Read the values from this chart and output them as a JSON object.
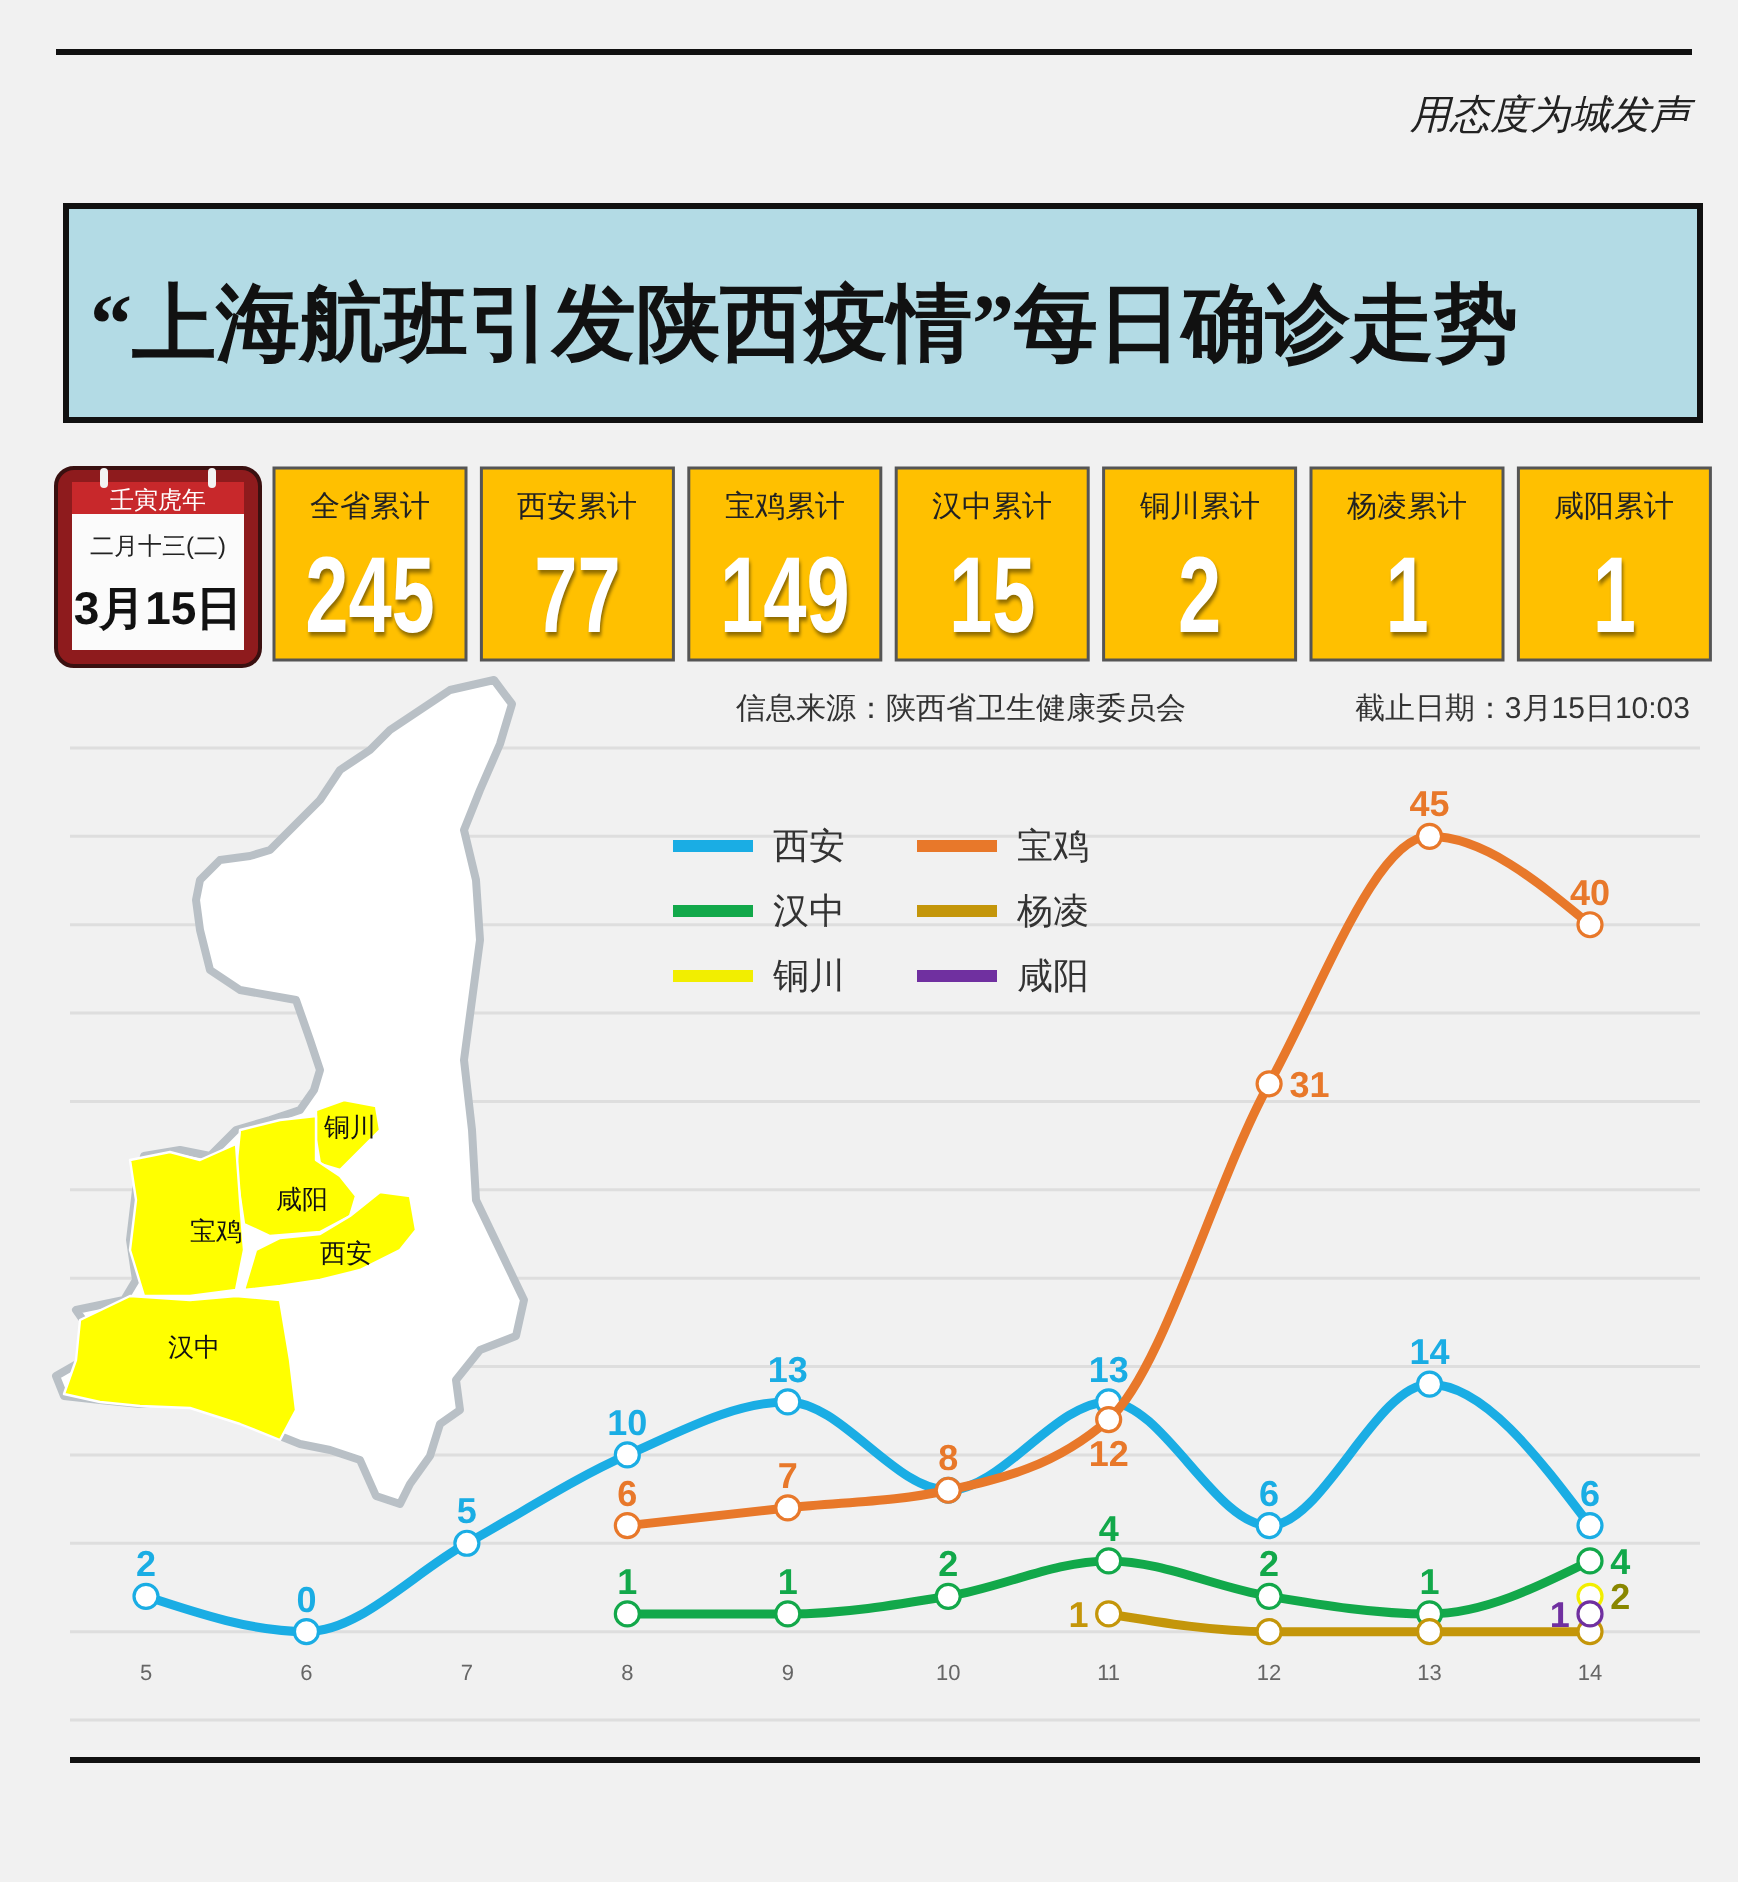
{
  "chart_data": [
    {
      "type": "line",
      "title": "“上海航班引发陕西疫情”每日确诊走势",
      "annotations": [
        "用态度为城发声",
        "信息来源：陕西省卫生健康委员会",
        "截止日期：3月15日10:03"
      ],
      "categories": [
        "5",
        "6",
        "7",
        "8",
        "9",
        "10",
        "11",
        "12",
        "13",
        "14"
      ],
      "series": [
        {
          "name": "西安",
          "color": "#1aade4",
          "values": [
            2,
            0,
            5,
            10,
            13,
            8,
            13,
            6,
            14,
            6
          ],
          "value_labels": [
            "2",
            "0",
            "5",
            "10",
            "13",
            null,
            "13",
            "6",
            "14",
            "6"
          ]
        },
        {
          "name": "宝鸡",
          "color": "#e8782a",
          "values": [
            null,
            null,
            null,
            6,
            7,
            8,
            12,
            31,
            45,
            40
          ],
          "value_labels": [
            null,
            null,
            null,
            "6",
            "7",
            "8",
            "12",
            "31",
            "45",
            "40"
          ]
        },
        {
          "name": "汉中",
          "color": "#12a84a",
          "values": [
            null,
            null,
            null,
            1,
            1,
            2,
            4,
            2,
            1,
            4
          ],
          "value_labels": [
            null,
            null,
            null,
            "1",
            "1",
            "2",
            "4",
            "2",
            "1",
            "4"
          ]
        },
        {
          "name": "杨凌",
          "color": "#c4960a",
          "values": [
            null,
            null,
            null,
            null,
            null,
            null,
            1,
            0,
            0,
            0
          ],
          "value_labels": [
            null,
            null,
            null,
            null,
            null,
            null,
            "1",
            null,
            null,
            null
          ]
        },
        {
          "name": "铜川",
          "color": "#f2ee00",
          "values": [
            null,
            null,
            null,
            null,
            null,
            null,
            null,
            null,
            null,
            2
          ],
          "value_labels": [
            null,
            null,
            null,
            null,
            null,
            null,
            null,
            null,
            null,
            "2"
          ]
        },
        {
          "name": "咸阳",
          "color": "#7030a0",
          "values": [
            null,
            null,
            null,
            null,
            null,
            null,
            null,
            null,
            null,
            1
          ],
          "value_labels": [
            null,
            null,
            null,
            null,
            null,
            null,
            null,
            null,
            null,
            "1"
          ]
        }
      ],
      "ylim": [
        -5,
        50
      ],
      "yticks": [
        {
          "value": -5,
          "label": null
        },
        {
          "value": 0,
          "label": null
        },
        {
          "value": 5,
          "label": null
        },
        {
          "value": 10,
          "label": null
        },
        {
          "value": 15,
          "label": null
        },
        {
          "value": 20,
          "label": null
        },
        {
          "value": 25,
          "label": null
        },
        {
          "value": 30,
          "label": null
        },
        {
          "value": 35,
          "label": null
        },
        {
          "value": 40,
          "label": null
        },
        {
          "value": 45,
          "label": null
        },
        {
          "value": 50,
          "label": null
        }
      ],
      "grid": "y",
      "legend": "top",
      "tick_labels": "x",
      "marker": "circle",
      "line_style": "solid"
    },
    {
      "type": "other",
      "categories": [
        "全省累计",
        "西安累计",
        "宝鸡累计",
        "汉中累计",
        "铜川累计",
        "杨凌累计",
        "咸阳累计"
      ],
      "values": [
        245,
        77,
        149,
        15,
        2,
        1,
        1
      ],
      "data_labels": true,
      "color": "#ffc000",
      "annotations": [
        "壬寅虎年",
        "二月十三(二)",
        "3月15日"
      ]
    },
    {
      "type": "other",
      "categories": [
        "铜川",
        "咸阳",
        "宝鸡",
        "西安",
        "汉中"
      ],
      "color": "#ffff00"
    }
  ]
}
